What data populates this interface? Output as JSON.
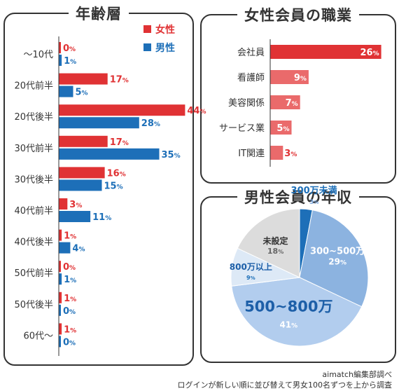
{
  "colors": {
    "female": "#e03234",
    "male": "#1d6fb8",
    "job_top": "#e03234",
    "job_other": "#ea6a6b",
    "pie": [
      "#1d6fb8",
      "#8cb3e0",
      "#b2cdee",
      "#dde9f6",
      "#dcdcdc"
    ]
  },
  "chart_data": [
    {
      "type": "bar",
      "orientation": "horizontal",
      "title": "年齢層",
      "categories": [
        "〜10代",
        "20代前半",
        "20代後半",
        "30代前半",
        "30代後半",
        "40代前半",
        "40代後半",
        "50代前半",
        "50代後半",
        "60代〜"
      ],
      "series": [
        {
          "name": "女性",
          "values": [
            0,
            17,
            44,
            17,
            16,
            3,
            1,
            0,
            1,
            1
          ]
        },
        {
          "name": "男性",
          "values": [
            1,
            5,
            28,
            35,
            15,
            11,
            4,
            1,
            0,
            0
          ]
        }
      ],
      "unit": "%",
      "legend": "top-right"
    },
    {
      "type": "bar",
      "orientation": "horizontal",
      "title": "女性会員の職業",
      "categories": [
        "会社員",
        "看護師",
        "美容関係",
        "サービス業",
        "IT関連"
      ],
      "values": [
        26,
        9,
        7,
        5,
        3
      ],
      "unit": "%"
    },
    {
      "type": "pie",
      "title": "男性会員の年収",
      "labels": [
        "300万未満",
        "300~500万",
        "500~800万",
        "800万以上",
        "未設定"
      ],
      "values": [
        3,
        29,
        41,
        9,
        18
      ],
      "unit": "%"
    }
  ],
  "footer": {
    "source": "aimatch編集部調べ",
    "note": "ログインが新しい順に並び替えて男女100名ずつを上から調査"
  }
}
